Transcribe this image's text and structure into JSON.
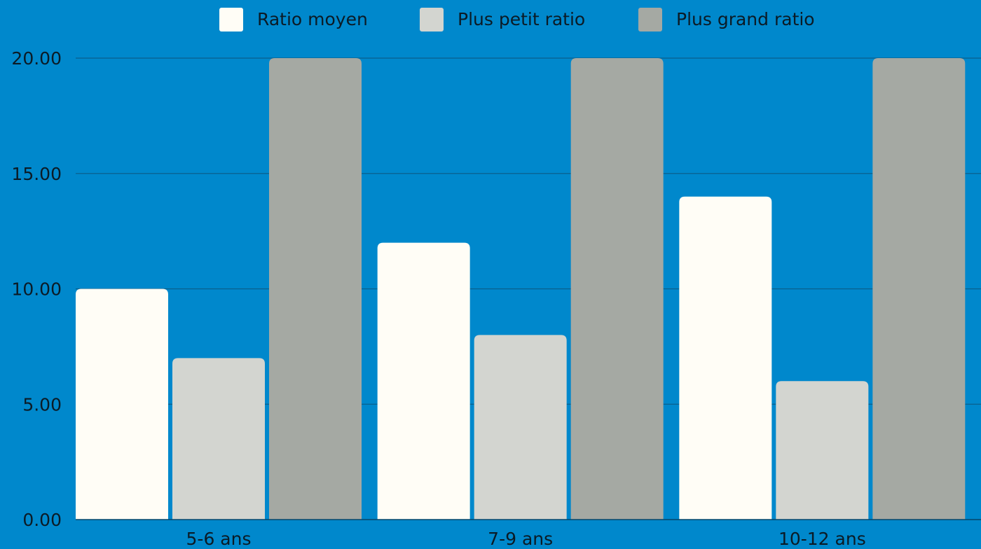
{
  "chart_data": {
    "type": "bar",
    "categories": [
      "5-6 ans",
      "7-9 ans",
      "10-12 ans"
    ],
    "series": [
      {
        "name": "Ratio moyen",
        "values": [
          10,
          12,
          14
        ],
        "color": "#FFFDF6"
      },
      {
        "name": "Plus petit ratio",
        "values": [
          7,
          8,
          6
        ],
        "color": "#D3D5D0"
      },
      {
        "name": "Plus grand ratio",
        "values": [
          20,
          20,
          20
        ],
        "color": "#A5A9A3"
      }
    ],
    "ylim": [
      0,
      20
    ],
    "yticks": [
      "0.00",
      "5.00",
      "10.00",
      "15.00",
      "20.00"
    ],
    "ytick_values": [
      0,
      5,
      10,
      15,
      20
    ],
    "grid": true,
    "legend_position": "top-center",
    "background_color": "#0088CC",
    "gridline_color": "#0A5F8C",
    "text_color": "#0B1B26"
  }
}
